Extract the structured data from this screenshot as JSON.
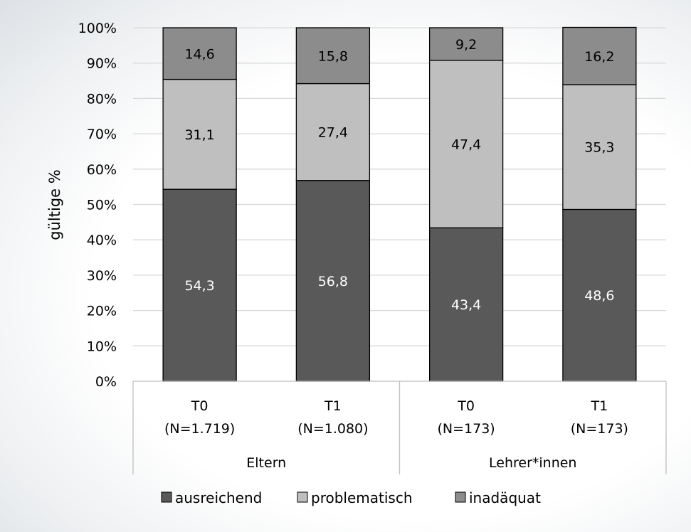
{
  "chart_data": {
    "type": "bar",
    "stacked": true,
    "ylabel": "gültige %",
    "ylim": [
      0,
      100
    ],
    "yticks": [
      "0%",
      "10%",
      "20%",
      "30%",
      "40%",
      "50%",
      "60%",
      "70%",
      "80%",
      "90%",
      "100%"
    ],
    "grid": true,
    "legend_position": "bottom",
    "categories": [
      {
        "label": "T0",
        "n": "(N=1.719)",
        "group": "Eltern"
      },
      {
        "label": "T1",
        "n": "(N=1.080)",
        "group": "Eltern"
      },
      {
        "label": "T0",
        "n": "(N=173)",
        "group": "Lehrer*innen"
      },
      {
        "label": "T1",
        "n": "(N=173)",
        "group": "Lehrer*innen"
      }
    ],
    "groups": [
      "Eltern",
      "Lehrer*innen"
    ],
    "series": [
      {
        "name": "ausreichend",
        "color": "#595959",
        "label_color": "#ffffff",
        "values": [
          54.3,
          56.8,
          43.4,
          48.6
        ],
        "labels": [
          "54,3",
          "56,8",
          "43,4",
          "48,6"
        ]
      },
      {
        "name": "problematisch",
        "color": "#bfbfbf",
        "label_color": "#000000",
        "values": [
          31.1,
          27.4,
          47.4,
          35.3
        ],
        "labels": [
          "31,1",
          "27,4",
          "47,4",
          "35,3"
        ]
      },
      {
        "name": "inadäquat",
        "color": "#8c8c8c",
        "label_color": "#000000",
        "values": [
          14.6,
          15.8,
          9.2,
          16.2
        ],
        "labels": [
          "14,6",
          "15,8",
          "9,2",
          "16,2"
        ]
      }
    ]
  }
}
